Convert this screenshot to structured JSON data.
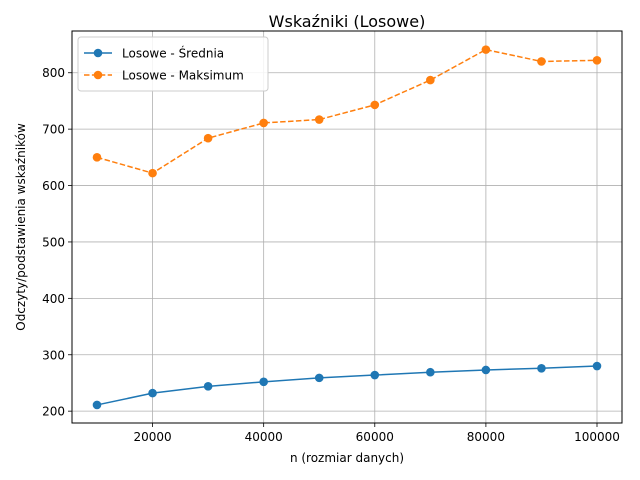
{
  "chart_data": {
    "type": "line",
    "title": "Wskaźniki (Losowe)",
    "xlabel": "n (rozmiar danych)",
    "ylabel": "Odczyty/podstawienia wskaźników",
    "x": [
      10000,
      20000,
      30000,
      40000,
      50000,
      60000,
      70000,
      80000,
      90000,
      100000
    ],
    "xlim": [
      5500,
      104500
    ],
    "ylim": [
      179,
      874
    ],
    "xticks": [
      20000,
      40000,
      60000,
      80000,
      100000
    ],
    "yticks": [
      200,
      300,
      400,
      500,
      600,
      700,
      800
    ],
    "grid": true,
    "legend_position": "top-left",
    "series": [
      {
        "name": "Losowe - Średnia",
        "values": [
          211,
          232,
          244,
          252,
          259,
          264,
          269,
          273,
          276,
          280
        ],
        "color": "#1f77b4",
        "line_style": "solid",
        "marker": "circle"
      },
      {
        "name": "Losowe - Maksimum",
        "values": [
          650,
          622,
          684,
          711,
          717,
          743,
          787,
          841,
          820,
          822
        ],
        "color": "#ff7f0e",
        "line_style": "dashed",
        "marker": "circle"
      }
    ]
  }
}
